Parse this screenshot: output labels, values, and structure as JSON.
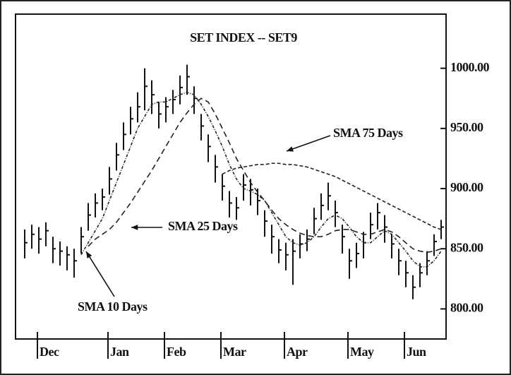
{
  "chart_data": {
    "type": "ohlc",
    "title": "SET INDEX -- SET9",
    "categories": [
      null,
      null,
      "Dec",
      null,
      null,
      null,
      null,
      null,
      null,
      null,
      null,
      null,
      "Jan",
      null,
      null,
      null,
      null,
      null,
      null,
      null,
      "Feb",
      null,
      null,
      null,
      null,
      null,
      null,
      null,
      "Mar",
      null,
      null,
      null,
      null,
      null,
      null,
      null,
      null,
      "Apr",
      null,
      null,
      null,
      null,
      null,
      null,
      null,
      null,
      "May",
      null,
      null,
      null,
      null,
      null,
      null,
      null,
      "Jun",
      null,
      null,
      null,
      null,
      null
    ],
    "high": [
      866,
      870,
      868,
      872,
      860,
      856,
      852,
      850,
      868,
      888,
      896,
      900,
      918,
      938,
      955,
      968,
      980,
      1000,
      990,
      972,
      976,
      982,
      994,
      1003,
      985,
      962,
      945,
      928,
      912,
      898,
      893,
      912,
      908,
      900,
      882,
      870,
      858,
      855,
      858,
      862,
      866,
      884,
      896,
      905,
      890,
      870,
      850,
      855,
      864,
      880,
      888,
      878,
      862,
      850,
      840,
      828,
      838,
      848,
      862,
      874
    ],
    "low": [
      842,
      850,
      846,
      852,
      838,
      836,
      832,
      826,
      846,
      865,
      876,
      882,
      895,
      915,
      932,
      945,
      955,
      965,
      962,
      950,
      955,
      962,
      970,
      978,
      962,
      940,
      922,
      905,
      890,
      876,
      874,
      890,
      886,
      878,
      860,
      846,
      838,
      832,
      820,
      842,
      848,
      862,
      874,
      882,
      868,
      846,
      825,
      834,
      842,
      858,
      866,
      855,
      842,
      828,
      818,
      808,
      818,
      828,
      844,
      858
    ],
    "close": [
      855,
      862,
      858,
      865,
      850,
      848,
      845,
      840,
      860,
      878,
      888,
      893,
      908,
      928,
      945,
      958,
      968,
      985,
      978,
      962,
      968,
      974,
      984,
      993,
      975,
      952,
      935,
      918,
      902,
      888,
      884,
      903,
      899,
      890,
      873,
      860,
      849,
      845,
      848,
      854,
      858,
      875,
      886,
      894,
      880,
      860,
      840,
      846,
      855,
      870,
      880,
      868,
      854,
      840,
      830,
      818,
      830,
      840,
      856,
      868
    ],
    "color": "#111111",
    "series": [
      {
        "name": "SMA 10 Days",
        "color": "#222222",
        "values": [
          null,
          null,
          null,
          null,
          null,
          null,
          null,
          null,
          845,
          855,
          865,
          875,
          890,
          905,
          920,
          935,
          950,
          960,
          970,
          972,
          972,
          975,
          978,
          980,
          978,
          970,
          960,
          948,
          935,
          920,
          908,
          900,
          898,
          895,
          890,
          880,
          870,
          860,
          855,
          853,
          855,
          860,
          868,
          875,
          878,
          875,
          868,
          860,
          855,
          855,
          860,
          865,
          862,
          855,
          848,
          840,
          835,
          835,
          840,
          848
        ]
      },
      {
        "name": "SMA 25 Days",
        "color": "#222222",
        "values": [
          null,
          null,
          null,
          null,
          null,
          null,
          null,
          null,
          null,
          852,
          858,
          862,
          866,
          872,
          880,
          888,
          897,
          906,
          915,
          925,
          935,
          945,
          955,
          963,
          970,
          975,
          972,
          962,
          950,
          938,
          925,
          915,
          905,
          897,
          890,
          882,
          875,
          870,
          866,
          863,
          861,
          860,
          860,
          862,
          865,
          866,
          866,
          864,
          862,
          862,
          864,
          866,
          864,
          860,
          855,
          850,
          848,
          847,
          848,
          850
        ]
      },
      {
        "name": "SMA 75 Days",
        "color": "#222222",
        "values": [
          null,
          null,
          null,
          null,
          null,
          null,
          null,
          null,
          null,
          null,
          null,
          null,
          null,
          null,
          null,
          null,
          null,
          null,
          null,
          null,
          null,
          null,
          null,
          null,
          null,
          null,
          null,
          null,
          912,
          915,
          917,
          918,
          919,
          920,
          920,
          921,
          921,
          920,
          920,
          919,
          918,
          916,
          914,
          912,
          910,
          907,
          904,
          901,
          898,
          895,
          892,
          889,
          886,
          883,
          880,
          877,
          874,
          871,
          868,
          866
        ]
      }
    ],
    "ylim": [
      775,
      1045
    ],
    "yticks": [
      {
        "value": 800,
        "label": "800.00"
      },
      {
        "value": 850,
        "label": "850.00"
      },
      {
        "value": 900,
        "label": "900.00"
      },
      {
        "value": 950,
        "label": "950.00"
      },
      {
        "value": 1000,
        "label": "1000.00"
      }
    ]
  }
}
